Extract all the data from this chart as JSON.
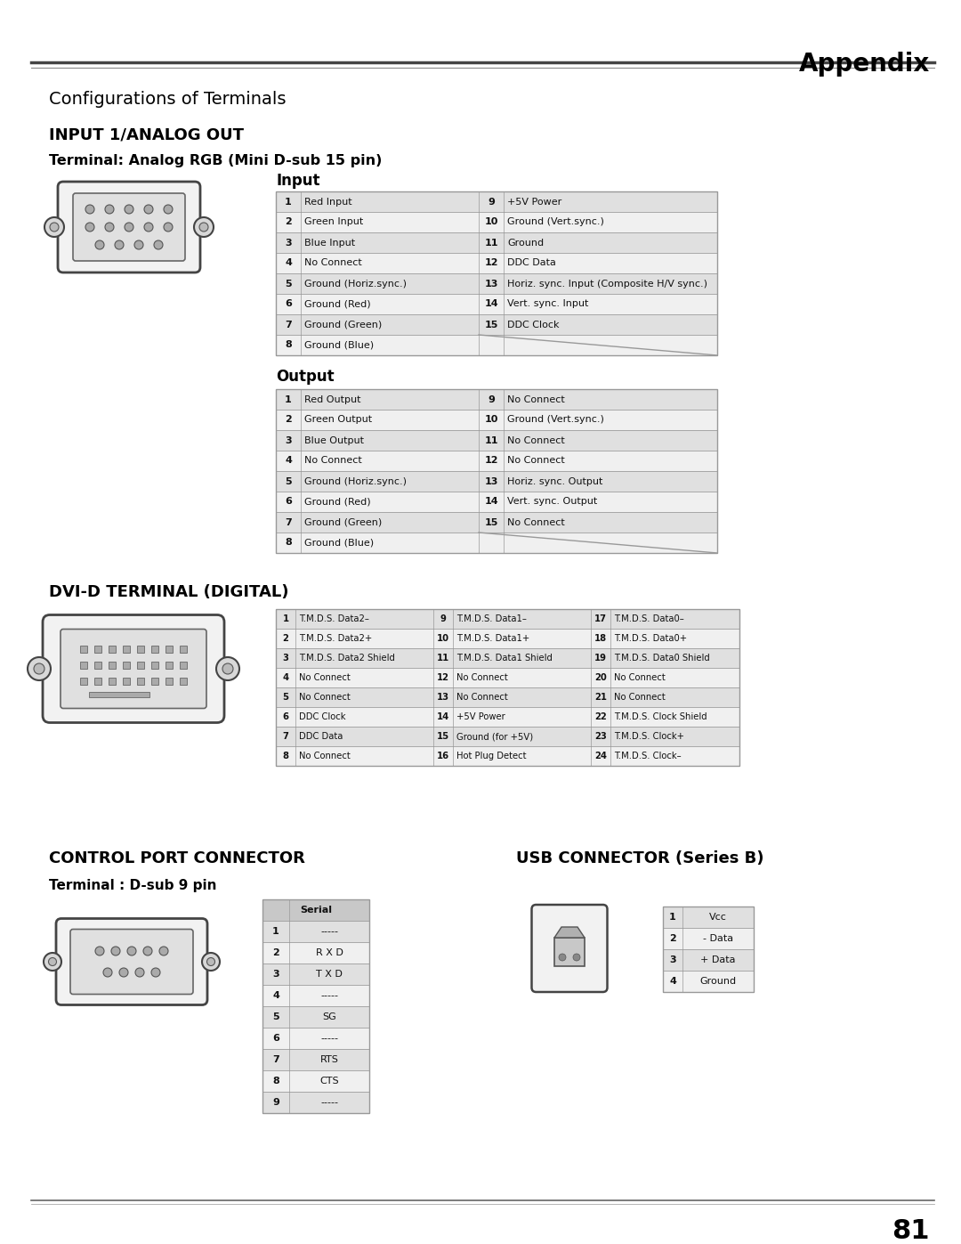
{
  "page_title": "Appendix",
  "section1_title": "Configurations of Terminals",
  "section2_title": "INPUT 1/ANALOG OUT",
  "terminal1_title": "Terminal: Analog RGB (Mini D-sub 15 pin)",
  "input_title": "Input",
  "output_title": "Output",
  "input_rows": [
    [
      "1",
      "Red Input",
      "9",
      "+5V Power"
    ],
    [
      "2",
      "Green Input",
      "10",
      "Ground (Vert.sync.)"
    ],
    [
      "3",
      "Blue Input",
      "11",
      "Ground"
    ],
    [
      "4",
      "No Connect",
      "12",
      "DDC Data"
    ],
    [
      "5",
      "Ground (Horiz.sync.)",
      "13",
      "Horiz. sync. Input (Composite H/V sync.)"
    ],
    [
      "6",
      "Ground (Red)",
      "14",
      "Vert. sync. Input"
    ],
    [
      "7",
      "Ground (Green)",
      "15",
      "DDC Clock"
    ],
    [
      "8",
      "Ground (Blue)",
      "",
      ""
    ]
  ],
  "output_rows": [
    [
      "1",
      "Red Output",
      "9",
      "No Connect"
    ],
    [
      "2",
      "Green Output",
      "10",
      "Ground (Vert.sync.)"
    ],
    [
      "3",
      "Blue Output",
      "11",
      "No Connect"
    ],
    [
      "4",
      "No Connect",
      "12",
      "No Connect"
    ],
    [
      "5",
      "Ground (Horiz.sync.)",
      "13",
      "Horiz. sync. Output"
    ],
    [
      "6",
      "Ground (Red)",
      "14",
      "Vert. sync. Output"
    ],
    [
      "7",
      "Ground (Green)",
      "15",
      "No Connect"
    ],
    [
      "8",
      "Ground (Blue)",
      "",
      ""
    ]
  ],
  "dvi_title": "DVI-D TERMINAL (DIGITAL)",
  "dvi_rows": [
    [
      "1",
      "T.M.D.S. Data2–",
      "9",
      "T.M.D.S. Data1–",
      "17",
      "T.M.D.S. Data0–"
    ],
    [
      "2",
      "T.M.D.S. Data2+",
      "10",
      "T.M.D.S. Data1+",
      "18",
      "T.M.D.S. Data0+"
    ],
    [
      "3",
      "T.M.D.S. Data2 Shield",
      "11",
      "T.M.D.S. Data1 Shield",
      "19",
      "T.M.D.S. Data0 Shield"
    ],
    [
      "4",
      "No Connect",
      "12",
      "No Connect",
      "20",
      "No Connect"
    ],
    [
      "5",
      "No Connect",
      "13",
      "No Connect",
      "21",
      "No Connect"
    ],
    [
      "6",
      "DDC Clock",
      "14",
      "+5V Power",
      "22",
      "T.M.D.S. Clock Shield"
    ],
    [
      "7",
      "DDC Data",
      "15",
      "Ground (for +5V)",
      "23",
      "T.M.D.S. Clock+"
    ],
    [
      "8",
      "No Connect",
      "16",
      "Hot Plug Detect",
      "24",
      "T.M.D.S. Clock–"
    ]
  ],
  "control_title": "CONTROL PORT CONNECTOR",
  "control_sub": "Terminal : D-sub 9 pin",
  "control_rows": [
    [
      "1",
      "-----"
    ],
    [
      "2",
      "R X D"
    ],
    [
      "3",
      "T X D"
    ],
    [
      "4",
      "-----"
    ],
    [
      "5",
      "SG"
    ],
    [
      "6",
      "-----"
    ],
    [
      "7",
      "RTS"
    ],
    [
      "8",
      "CTS"
    ],
    [
      "9",
      "-----"
    ]
  ],
  "usb_title": "USB CONNECTOR (Series B)",
  "usb_rows": [
    [
      "1",
      "Vcc"
    ],
    [
      "2",
      "- Data"
    ],
    [
      "3",
      "+ Data"
    ],
    [
      "4",
      "Ground"
    ]
  ],
  "page_number": "81",
  "bg_color": "#ffffff",
  "header_bg": "#c8c8c8",
  "row_alt_color": "#e0e0e0",
  "row_color": "#f0f0f0",
  "border_color": "#999999",
  "text_color": "#111111",
  "title_color": "#000000"
}
